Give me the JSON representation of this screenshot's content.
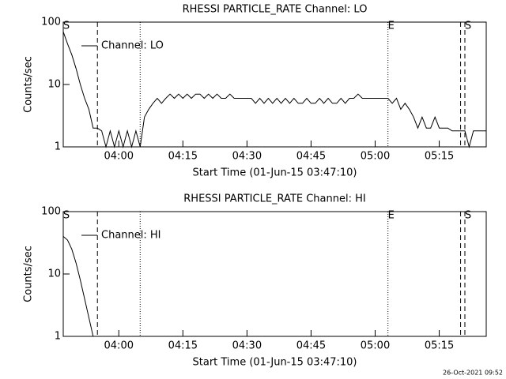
{
  "chart_data": [
    {
      "type": "line",
      "title": "RHESSI PARTICLE_RATE Channel: LO",
      "xlabel": "Start Time (01-Jun-15 03:47:10)",
      "ylabel": "Counts/sec",
      "x": [
        "03:47",
        "03:48",
        "03:49",
        "03:50",
        "03:51",
        "03:52",
        "03:53",
        "03:54",
        "03:55",
        "03:56",
        "03:57",
        "03:58",
        "03:59",
        "04:00",
        "04:01",
        "04:02",
        "04:03",
        "04:04",
        "04:05",
        "04:06",
        "04:07",
        "04:08",
        "04:09",
        "04:10",
        "04:11",
        "04:12",
        "04:13",
        "04:14",
        "04:15",
        "04:16",
        "04:17",
        "04:18",
        "04:19",
        "04:20",
        "04:21",
        "04:22",
        "04:23",
        "04:24",
        "04:25",
        "04:26",
        "04:27",
        "04:28",
        "04:29",
        "04:30",
        "04:31",
        "04:32",
        "04:33",
        "04:34",
        "04:35",
        "04:36",
        "04:37",
        "04:38",
        "04:39",
        "04:40",
        "04:41",
        "04:42",
        "04:43",
        "04:44",
        "04:45",
        "04:46",
        "04:47",
        "04:48",
        "04:49",
        "04:50",
        "04:51",
        "04:52",
        "04:53",
        "04:54",
        "04:55",
        "04:56",
        "04:57",
        "04:58",
        "04:59",
        "05:00",
        "05:01",
        "05:02",
        "05:03",
        "05:04",
        "05:05",
        "05:06",
        "05:07",
        "05:08",
        "05:09",
        "05:10",
        "05:11",
        "05:12",
        "05:13",
        "05:14",
        "05:15",
        "05:16",
        "05:17",
        "05:18",
        "05:19",
        "05:20",
        "05:21",
        "05:22",
        "05:23",
        "05:24",
        "05:25",
        "05:26"
      ],
      "series": [
        {
          "name": "Channel: LO",
          "color": "#000000",
          "values": [
            70,
            45,
            30,
            18,
            10,
            6,
            4,
            2,
            2,
            1.8,
            1,
            1.8,
            1,
            1.8,
            1,
            1.8,
            1,
            1.8,
            1,
            3,
            4,
            5,
            6,
            5,
            6,
            7,
            6,
            7,
            6,
            7,
            6,
            7,
            7,
            6,
            7,
            6,
            7,
            6,
            6,
            7,
            6,
            6,
            6,
            6,
            6,
            5,
            6,
            5,
            6,
            5,
            6,
            5,
            6,
            5,
            6,
            5,
            5,
            6,
            5,
            5,
            6,
            5,
            6,
            5,
            5,
            6,
            5,
            6,
            6,
            7,
            6,
            6,
            6,
            6,
            6,
            6,
            6,
            5,
            6,
            4,
            5,
            4,
            3,
            2,
            3,
            2,
            2,
            3,
            2,
            2,
            2,
            1.8,
            1.8,
            1.8,
            1.8,
            1,
            1.8,
            1.8,
            1.8,
            1.8
          ]
        }
      ],
      "xlim": [
        "03:47",
        "05:26"
      ],
      "xticks": [
        "04:00",
        "04:15",
        "04:30",
        "04:45",
        "05:00",
        "05:15"
      ],
      "ylim": [
        1,
        100
      ],
      "yticks": [
        1,
        10,
        100
      ],
      "log_y": true,
      "markers": [
        {
          "x": "03:47",
          "label": "S"
        },
        {
          "x": "03:55",
          "style": "dashed"
        },
        {
          "x": "04:05",
          "style": "dotted"
        },
        {
          "x": "05:03",
          "style": "dotted",
          "label": "E"
        },
        {
          "x": "05:20",
          "style": "dashed"
        },
        {
          "x": "05:21",
          "style": "dashed",
          "label": "S"
        }
      ]
    },
    {
      "type": "line",
      "title": "RHESSI PARTICLE_RATE Channel: HI",
      "xlabel": "Start Time (01-Jun-15 03:47:10)",
      "ylabel": "Counts/sec",
      "x": [
        "03:47",
        "03:48",
        "03:49",
        "03:50",
        "03:51",
        "03:52",
        "03:53",
        "03:54"
      ],
      "series": [
        {
          "name": "Channel: HI",
          "color": "#000000",
          "values": [
            40,
            35,
            25,
            15,
            8,
            4,
            2,
            1
          ]
        }
      ],
      "xlim": [
        "03:47",
        "05:26"
      ],
      "xticks": [
        "04:00",
        "04:15",
        "04:30",
        "04:45",
        "05:00",
        "05:15"
      ],
      "ylim": [
        1,
        100
      ],
      "yticks": [
        1,
        10,
        100
      ],
      "log_y": true,
      "markers": [
        {
          "x": "03:47",
          "label": "S"
        },
        {
          "x": "03:55",
          "style": "dashed"
        },
        {
          "x": "04:05",
          "style": "dotted"
        },
        {
          "x": "05:03",
          "style": "dotted",
          "label": "E"
        },
        {
          "x": "05:20",
          "style": "dashed"
        },
        {
          "x": "05:21",
          "style": "dashed",
          "label": "S"
        }
      ]
    }
  ],
  "footer": "26-Oct-2021 09:52"
}
